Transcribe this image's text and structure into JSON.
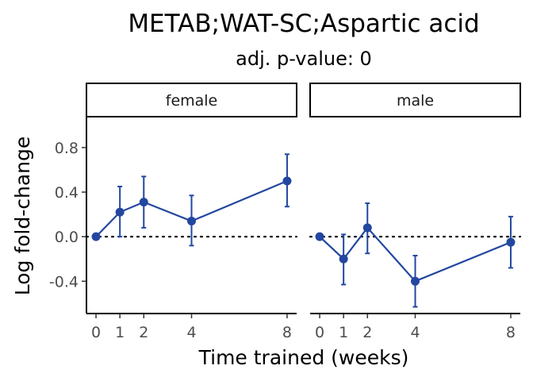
{
  "chart_data": {
    "type": "line",
    "title": "METAB;WAT-SC;Aspartic acid",
    "subtitle": "adj. p-value: 0",
    "xlabel": "Time trained (weeks)",
    "ylabel": "Log fold-change",
    "x_ticks": [
      0,
      1,
      2,
      4,
      8
    ],
    "y_ticks": [
      -0.4,
      0.0,
      0.4,
      0.8
    ],
    "y_tick_labels": [
      "-0.4",
      "0.0",
      "0.4",
      "0.8"
    ],
    "ylim": [
      -0.69,
      1.07
    ],
    "xlim": [
      -0.4,
      8.4
    ],
    "reference_line_y": 0,
    "grid": false,
    "series_color": "#2347a0",
    "panels": [
      {
        "label": "female",
        "points": [
          {
            "x": 0,
            "y": 0.0,
            "lo": 0.0,
            "hi": 0.0
          },
          {
            "x": 1,
            "y": 0.22,
            "lo": 0.0,
            "hi": 0.45
          },
          {
            "x": 2,
            "y": 0.31,
            "lo": 0.08,
            "hi": 0.54
          },
          {
            "x": 4,
            "y": 0.14,
            "lo": -0.08,
            "hi": 0.37
          },
          {
            "x": 8,
            "y": 0.5,
            "lo": 0.27,
            "hi": 0.74
          }
        ]
      },
      {
        "label": "male",
        "points": [
          {
            "x": 0,
            "y": 0.0,
            "lo": 0.0,
            "hi": 0.0
          },
          {
            "x": 1,
            "y": -0.2,
            "lo": -0.43,
            "hi": 0.02
          },
          {
            "x": 2,
            "y": 0.08,
            "lo": -0.15,
            "hi": 0.3
          },
          {
            "x": 4,
            "y": -0.4,
            "lo": -0.63,
            "hi": -0.17
          },
          {
            "x": 8,
            "y": -0.05,
            "lo": -0.28,
            "hi": 0.18
          }
        ]
      }
    ]
  }
}
